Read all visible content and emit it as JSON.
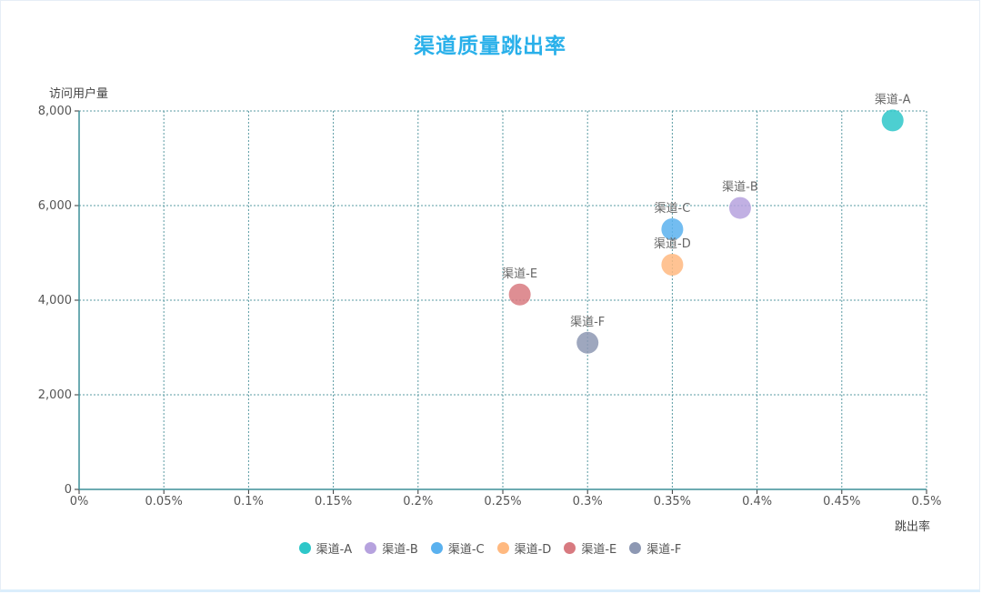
{
  "chart_data": {
    "type": "scatter",
    "title": "渠道质量跳出率",
    "xlabel": "跳出率",
    "ylabel": "访问用户量",
    "xlim": [
      0,
      0.5
    ],
    "ylim": [
      0,
      8000
    ],
    "x_ticks": [
      "0%",
      "0.05%",
      "0.1%",
      "0.15%",
      "0.2%",
      "0.25%",
      "0.3%",
      "0.35%",
      "0.4%",
      "0.45%",
      "0.5%"
    ],
    "y_ticks": [
      "0",
      "2,000",
      "4,000",
      "6,000",
      "8,000"
    ],
    "grid": true,
    "legend_position": "bottom",
    "series": [
      {
        "name": "渠道-A",
        "x": 0.48,
        "y": 7800,
        "color": "#2ec7c9"
      },
      {
        "name": "渠道-B",
        "x": 0.39,
        "y": 5950,
        "color": "#b6a2de"
      },
      {
        "name": "渠道-C",
        "x": 0.35,
        "y": 5500,
        "color": "#5ab1ef"
      },
      {
        "name": "渠道-D",
        "x": 0.35,
        "y": 4750,
        "color": "#ffb980"
      },
      {
        "name": "渠道-E",
        "x": 0.26,
        "y": 4120,
        "color": "#d87a80"
      },
      {
        "name": "渠道-F",
        "x": 0.3,
        "y": 3100,
        "color": "#8d98b3"
      }
    ]
  }
}
